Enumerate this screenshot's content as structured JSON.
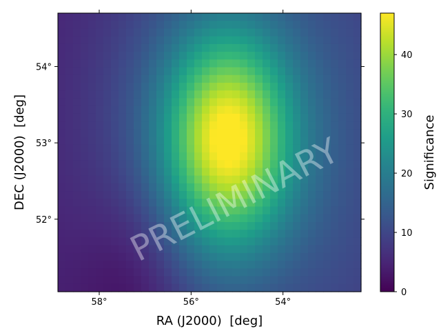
{
  "chart_data": {
    "type": "heatmap",
    "title": "",
    "xlabel": "RA (J2000)  [deg]",
    "ylabel": "DEC (J2000)  [deg]",
    "colorbar_label": "Significance",
    "colormap": "viridis",
    "watermark": "PRELIMINARY",
    "xlim": [
      58.9,
      52.3
    ],
    "ylim": [
      51.05,
      54.7
    ],
    "x_ticks": [
      {
        "value": 58,
        "label": "58°"
      },
      {
        "value": 56,
        "label": "56°"
      },
      {
        "value": 54,
        "label": "54°"
      }
    ],
    "y_ticks": [
      {
        "value": 54,
        "label": "54°"
      },
      {
        "value": 53,
        "label": "53°"
      },
      {
        "value": 52,
        "label": "52°"
      }
    ],
    "clim": [
      0,
      47
    ],
    "colorbar_ticks": [
      0,
      10,
      20,
      30,
      40
    ],
    "grid": false,
    "grid_size": [
      40,
      36
    ],
    "peak": {
      "ra": 55.2,
      "dec": 53.05,
      "value": 47
    },
    "dim_spot": {
      "ra": 57.2,
      "dec": 51.2,
      "value": 1
    }
  }
}
